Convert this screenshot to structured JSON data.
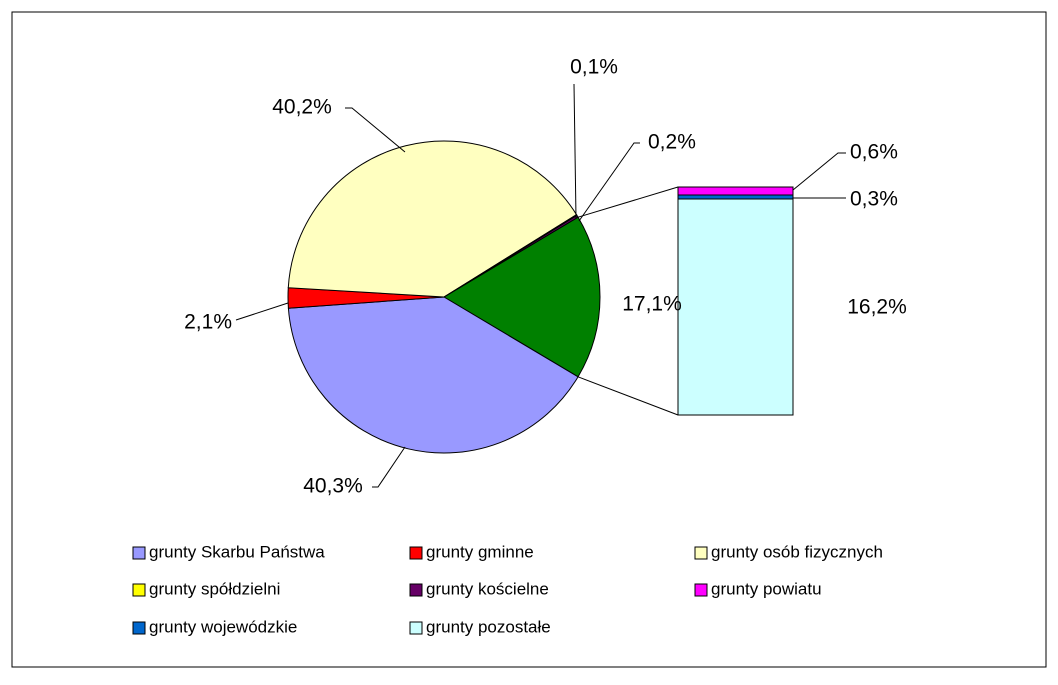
{
  "chart_data": {
    "type": "pie-of-bar",
    "pie": {
      "categories": [
        "grunty Skarbu Państwa",
        "grunty gminne",
        "grunty osób fizycznych",
        "grunty spółdzielni",
        "grunty kościelne"
      ],
      "values": [
        40.3,
        2.1,
        40.2,
        0.1,
        0.2
      ],
      "value_labels": [
        "40,3%",
        "2,1%",
        "40,2%",
        "0,1%",
        "0,2%"
      ],
      "colors": [
        "#9999ff",
        "#ff0000",
        "#ffffc0",
        "#ffff00",
        "#660066"
      ]
    },
    "other": {
      "value": 17.1,
      "value_label": "17,1%",
      "color": "#008000"
    },
    "bar": {
      "categories": [
        "grunty powiatu",
        "grunty wojewódzkie",
        "grunty pozostałe"
      ],
      "values": [
        0.6,
        0.3,
        16.2
      ],
      "value_labels": [
        "0,6%",
        "0,3%",
        "16,2%"
      ],
      "colors": [
        "#ff00ff",
        "#0066cc",
        "#ccffff"
      ]
    }
  }
}
